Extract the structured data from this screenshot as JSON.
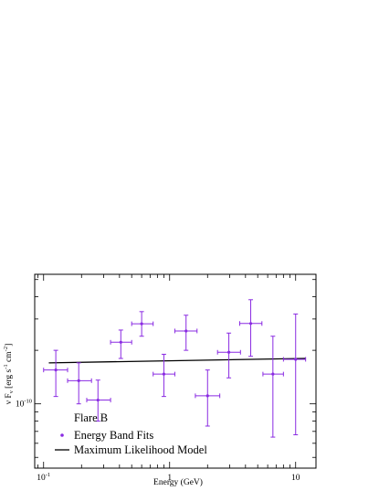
{
  "chart_data": {
    "type": "scatter",
    "title": "",
    "xlabel": "Energy (GeV)",
    "ylabel": "ν F",
    "ylabel_sub": "ν",
    "ylabel_unit": " [erg s",
    "ylabel_unit_exp1": "-1",
    "ylabel_unit_mid": " cm",
    "ylabel_unit_exp2": "-2",
    "ylabel_unit_end": "]",
    "x_scale": "log",
    "y_scale": "log",
    "xlim": [
      0.085,
      14.5
    ],
    "ylim": [
      4.35e-11,
      5.35e-10
    ],
    "x_ticks": [
      {
        "value": 0.1,
        "base": "10",
        "exp": "-1"
      },
      {
        "value": 1,
        "base": "1",
        "exp": ""
      },
      {
        "value": 10,
        "base": "10",
        "exp": ""
      }
    ],
    "y_ticks": [
      {
        "value": 1e-10,
        "base": "10",
        "exp": "-10"
      }
    ],
    "grid": false,
    "legend": {
      "placement": "bottom-left",
      "title": "Flare B",
      "entries": [
        {
          "label": "Energy Band Fits",
          "marker": "point",
          "color": "#8a2be2"
        },
        {
          "label": "Maximum Likelihood Model",
          "marker": "line",
          "color": "#000000"
        }
      ]
    },
    "series": [
      {
        "name": "Energy Band Fits",
        "color": "#8a2be2",
        "points": [
          {
            "x": 0.125,
            "xlo": 0.1,
            "xhi": 0.155,
            "y": 1.55e-10,
            "ylo": 1.1e-10,
            "yhi": 2e-10
          },
          {
            "x": 0.19,
            "xlo": 0.155,
            "xhi": 0.24,
            "y": 1.35e-10,
            "ylo": 1e-10,
            "yhi": 1.7e-10
          },
          {
            "x": 0.27,
            "xlo": 0.22,
            "xhi": 0.34,
            "y": 1.05e-10,
            "ylo": 8e-11,
            "yhi": 1.36e-10
          },
          {
            "x": 0.41,
            "xlo": 0.34,
            "xhi": 0.5,
            "y": 2.22e-10,
            "ylo": 1.8e-10,
            "yhi": 2.6e-10
          },
          {
            "x": 0.6,
            "xlo": 0.5,
            "xhi": 0.74,
            "y": 2.82e-10,
            "ylo": 2.4e-10,
            "yhi": 3.3e-10
          },
          {
            "x": 0.9,
            "xlo": 0.74,
            "xhi": 1.1,
            "y": 1.47e-10,
            "ylo": 1.1e-10,
            "yhi": 1.9e-10
          },
          {
            "x": 1.35,
            "xlo": 1.1,
            "xhi": 1.65,
            "y": 2.57e-10,
            "ylo": 2e-10,
            "yhi": 3.15e-10
          },
          {
            "x": 2.0,
            "xlo": 1.6,
            "xhi": 2.5,
            "y": 1.11e-10,
            "ylo": 7.5e-11,
            "yhi": 1.55e-10
          },
          {
            "x": 2.95,
            "xlo": 2.4,
            "xhi": 3.65,
            "y": 1.95e-10,
            "ylo": 1.4e-10,
            "yhi": 2.5e-10
          },
          {
            "x": 4.4,
            "xlo": 3.6,
            "xhi": 5.4,
            "y": 2.83e-10,
            "ylo": 1.85e-10,
            "yhi": 3.85e-10
          },
          {
            "x": 6.6,
            "xlo": 5.5,
            "xhi": 8.0,
            "y": 1.47e-10,
            "ylo": 6.5e-11,
            "yhi": 2.4e-10
          },
          {
            "x": 10.0,
            "xlo": 8.0,
            "xhi": 12.0,
            "y": 1.78e-10,
            "ylo": 6.7e-11,
            "yhi": 3.2e-10
          }
        ]
      }
    ],
    "model": {
      "name": "Maximum Likelihood Model",
      "color": "#000000",
      "x": [
        0.11,
        12.0
      ],
      "y": [
        1.7e-10,
        1.8e-10
      ]
    }
  }
}
